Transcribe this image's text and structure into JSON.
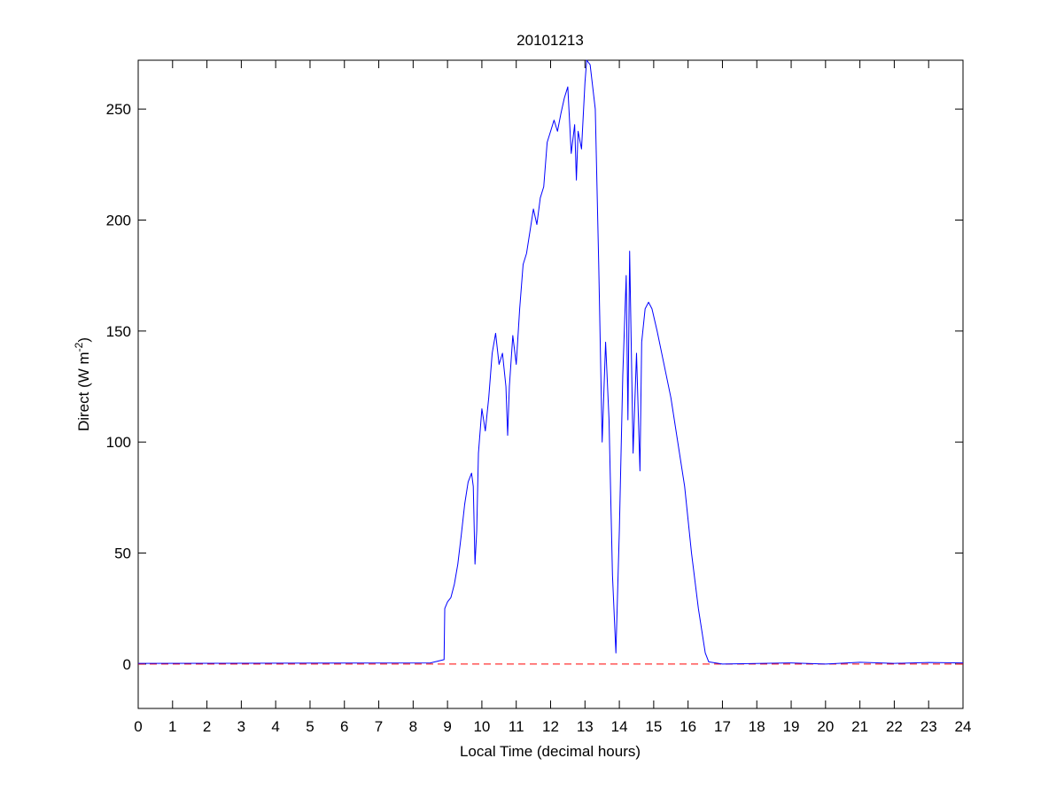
{
  "chart_data": {
    "type": "line",
    "title": "20101213",
    "xlabel": "Local Time (decimal hours)",
    "ylabel": [
      "Direct (W m",
      "-2",
      ")"
    ],
    "x": [
      0,
      8.5,
      8.9,
      8.92,
      9.0,
      9.1,
      9.2,
      9.3,
      9.4,
      9.5,
      9.6,
      9.7,
      9.75,
      9.8,
      9.85,
      9.9,
      10.0,
      10.1,
      10.2,
      10.3,
      10.4,
      10.5,
      10.6,
      10.7,
      10.75,
      10.8,
      10.9,
      11.0,
      11.1,
      11.2,
      11.3,
      11.4,
      11.5,
      11.6,
      11.7,
      11.8,
      11.9,
      12.0,
      12.1,
      12.2,
      12.3,
      12.4,
      12.5,
      12.6,
      12.7,
      12.75,
      12.8,
      12.9,
      13.0,
      13.05,
      13.15,
      13.3,
      13.4,
      13.5,
      13.6,
      13.7,
      13.8,
      13.9,
      14.0,
      14.1,
      14.2,
      14.25,
      14.3,
      14.4,
      14.5,
      14.6,
      14.65,
      14.75,
      14.85,
      14.95,
      15.1,
      15.3,
      15.5,
      15.7,
      15.9,
      16.1,
      16.3,
      16.5,
      16.6,
      17,
      19,
      20,
      21,
      22,
      23,
      24
    ],
    "values": [
      0.3,
      0.5,
      2,
      25,
      28,
      30,
      36,
      45,
      58,
      72,
      82,
      86,
      80,
      45,
      60,
      95,
      115,
      105,
      120,
      140,
      149,
      135,
      140,
      125,
      103,
      125,
      148,
      135,
      160,
      180,
      185,
      195,
      205,
      198,
      210,
      215,
      235,
      240,
      245,
      240,
      248,
      255,
      260,
      230,
      243,
      218,
      240,
      232,
      262,
      272,
      270,
      250,
      180,
      100,
      145,
      110,
      40,
      5,
      60,
      130,
      175,
      110,
      186,
      95,
      140,
      87,
      145,
      160,
      163,
      160,
      150,
      135,
      120,
      100,
      80,
      50,
      25,
      5,
      1,
      0,
      0.5,
      0,
      0.8,
      0.3,
      0.7,
      0.5
    ],
    "color": "#0000ff",
    "reference_line": {
      "value": 0,
      "color": "#ff0000",
      "style": "dashed"
    },
    "xlim": [
      0,
      24
    ],
    "xticks": [
      0,
      1,
      2,
      3,
      4,
      5,
      6,
      7,
      8,
      9,
      10,
      11,
      12,
      13,
      14,
      15,
      16,
      17,
      18,
      19,
      20,
      21,
      22,
      23,
      24
    ],
    "ylim": [
      -20,
      272
    ],
    "yticks": [
      0,
      50,
      100,
      150,
      200,
      250
    ]
  }
}
